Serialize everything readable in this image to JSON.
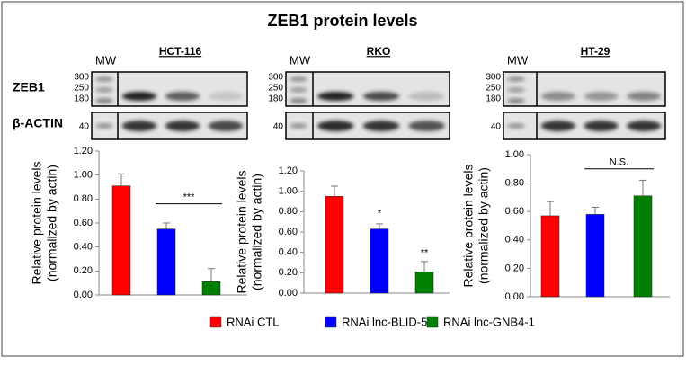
{
  "title": "ZEB1 protein levels",
  "rows": [
    "ZEB1",
    "β-ACTIN"
  ],
  "legend": [
    {
      "name": "RNAi CTL",
      "color": "#ff0000"
    },
    {
      "name": "RNAi lnc-BLID-5",
      "color": "#0000ff"
    },
    {
      "name": "RNAi lnc-GNB4-1",
      "color": "#008000"
    }
  ],
  "chart_data": [
    {
      "type": "bar",
      "title": "HCT-116",
      "mw": "MW",
      "markers": [
        "300",
        "250",
        "180"
      ],
      "actin_marker": "40",
      "ylabel": [
        "Relative protein levels",
        "(normalized by actin)"
      ],
      "values": [
        0.91,
        0.55,
        0.11
      ],
      "errors": [
        0.1,
        0.05,
        0.11
      ],
      "ylim": [
        0,
        1.2
      ],
      "yticks": [
        {
          "value": 0,
          "label": "0.00"
        },
        {
          "value": 0.2,
          "label": "0.20"
        },
        {
          "value": 0.4,
          "label": "0.40"
        },
        {
          "value": 0.6,
          "label": "0.60"
        },
        {
          "value": 0.8,
          "label": "0.80"
        },
        {
          "value": 1,
          "label": "1.00"
        },
        {
          "value": 1.2,
          "label": "1.20"
        }
      ],
      "annotations": [
        {
          "text": "***",
          "y": 0.76
        }
      ]
    },
    {
      "type": "bar",
      "title": "RKO",
      "mw": "MW",
      "markers": [
        "300",
        "250",
        "180"
      ],
      "actin_marker": "40",
      "ylabel": [
        "Relative protein levels",
        "(normalized by actin)"
      ],
      "values": [
        0.95,
        0.63,
        0.21
      ],
      "errors": [
        0.1,
        0.05,
        0.1
      ],
      "ylim": [
        0,
        1.2
      ],
      "yticks": [
        {
          "value": 0,
          "label": "0.00"
        },
        {
          "value": 0.2,
          "label": "0.20"
        },
        {
          "value": 0.4,
          "label": "0.40"
        },
        {
          "value": 0.6,
          "label": "0.60"
        },
        {
          "value": 0.8,
          "label": "0.80"
        },
        {
          "value": 1,
          "label": "1.00"
        },
        {
          "value": 1.2,
          "label": "1.20"
        }
      ],
      "annotations": [
        {
          "text": "*",
          "y": 0.72
        },
        {
          "text": "**",
          "y": 0.33
        }
      ]
    },
    {
      "type": "bar",
      "title": "HT-29",
      "mw": "MW",
      "markers": [
        "300",
        "250",
        "180"
      ],
      "actin_marker": "40",
      "ylabel": [
        "Relative protein levels",
        "(normalized by actin)"
      ],
      "values": [
        0.57,
        0.58,
        0.71
      ],
      "errors": [
        0.1,
        0.05,
        0.11
      ],
      "ylim": [
        0,
        1
      ],
      "yticks": [
        {
          "value": 0,
          "label": "0.00"
        },
        {
          "value": 0.2,
          "label": "0.20"
        },
        {
          "value": 0.4,
          "label": "0.40"
        },
        {
          "value": 0.6,
          "label": "0.60"
        },
        {
          "value": 0.8,
          "label": "0.80"
        },
        {
          "value": 1,
          "label": "1.00"
        }
      ],
      "annotations": [
        {
          "text": "N.S.",
          "y": 0.9
        }
      ]
    }
  ]
}
